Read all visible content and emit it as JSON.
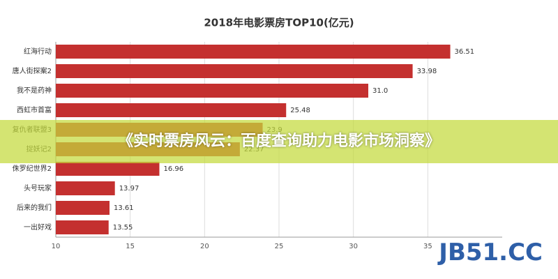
{
  "chart_data": {
    "type": "hbar",
    "title": "2018年电影票房TOP10(亿元)",
    "categories": [
      "红海行动",
      "唐人街探案2",
      "我不是药神",
      "西虹市首富",
      "复仇者联盟3",
      "捉妖记2",
      "侏罗纪世界2",
      "头号玩家",
      "后来的我们",
      "一出好戏"
    ],
    "values": [
      36.51,
      33.98,
      31,
      25.48,
      23.9,
      22.37,
      16.96,
      13.97,
      13.61,
      13.55
    ],
    "value_labels": [
      "36.51",
      "33.98",
      "31.0",
      "25.48",
      "23.9",
      "22.37",
      "16.96",
      "13.97",
      "13.61",
      "13.55"
    ],
    "color": "#c4302f",
    "xlim": [
      10,
      40
    ],
    "xticks": [
      10,
      15,
      20,
      25,
      30,
      35
    ],
    "grid": true
  },
  "banner": "《实时票房风云：百度查询助力电影市场洞察》",
  "watermark": "JB51.CC"
}
